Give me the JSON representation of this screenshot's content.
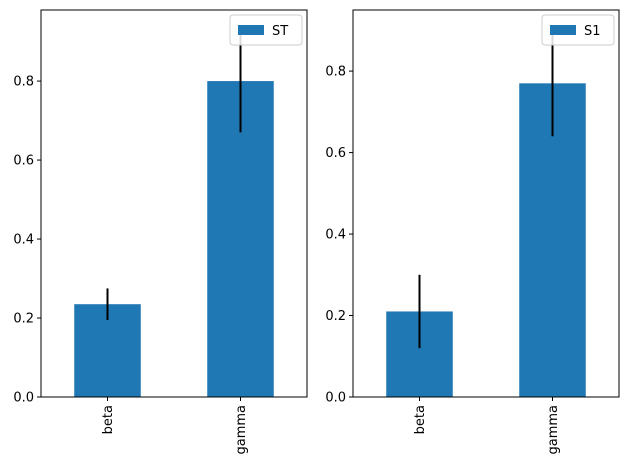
{
  "chart_data": [
    {
      "type": "bar",
      "categories": [
        "beta",
        "gamma"
      ],
      "series": [
        {
          "name": "ST",
          "values": [
            0.235,
            0.8
          ],
          "error": [
            0.04,
            0.13
          ],
          "color": "#1f77b4"
        }
      ],
      "ylim": [
        0,
        0.98
      ],
      "yticks": [
        0.0,
        0.2,
        0.4,
        0.6,
        0.8
      ],
      "ytick_labels": [
        "0.0",
        "0.2",
        "0.4",
        "0.6",
        "0.8"
      ],
      "xtick_rotation": "vertical",
      "grid": false,
      "legend": {
        "placement": "top-right",
        "entries": [
          "ST"
        ]
      }
    },
    {
      "type": "bar",
      "categories": [
        "beta",
        "gamma"
      ],
      "series": [
        {
          "name": "S1",
          "values": [
            0.21,
            0.77
          ],
          "error": [
            0.09,
            0.13
          ],
          "color": "#1f77b4"
        }
      ],
      "ylim": [
        0,
        0.95
      ],
      "yticks": [
        0.0,
        0.2,
        0.4,
        0.6,
        0.8
      ],
      "ytick_labels": [
        "0.0",
        "0.2",
        "0.4",
        "0.6",
        "0.8"
      ],
      "xtick_rotation": "vertical",
      "grid": false,
      "legend": {
        "placement": "top-right",
        "entries": [
          "S1"
        ]
      }
    }
  ]
}
